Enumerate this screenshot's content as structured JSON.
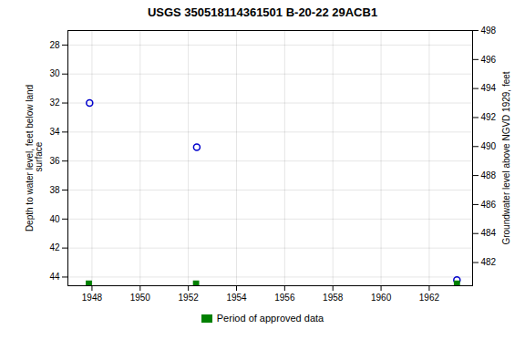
{
  "chart_data": {
    "type": "scatter",
    "title": "USGS 350518114361501 B-20-22 29ACB1",
    "y_label": "Depth to water level, feet below land\n surface",
    "y2_label": "Groundwater level above NGVD 1929, feet",
    "xlim": [
      1947.0,
      1963.8
    ],
    "xticks": [
      1948,
      1950,
      1952,
      1954,
      1956,
      1958,
      1960,
      1962
    ],
    "ylim": [
      44.6,
      27.0
    ],
    "yticks": [
      28,
      30,
      32,
      34,
      36,
      38,
      40,
      42,
      44
    ],
    "y2lim": [
      480.4,
      498.0
    ],
    "y2ticks": [
      482,
      484,
      486,
      488,
      490,
      492,
      494,
      496,
      498
    ],
    "grid": true,
    "legend": "bottom",
    "series": [
      {
        "x": [
          1947.9,
          1952.35,
          1963.15
        ],
        "values": [
          32.0,
          35.05,
          44.2
        ],
        "color": "#0000cc",
        "marker": "open_circle"
      },
      {
        "name": "Period of approved data",
        "x": [
          1947.87,
          1952.32,
          1963.15
        ],
        "values": [
          44.45,
          44.45,
          44.45
        ],
        "color": "#008000",
        "marker": "square"
      }
    ]
  }
}
